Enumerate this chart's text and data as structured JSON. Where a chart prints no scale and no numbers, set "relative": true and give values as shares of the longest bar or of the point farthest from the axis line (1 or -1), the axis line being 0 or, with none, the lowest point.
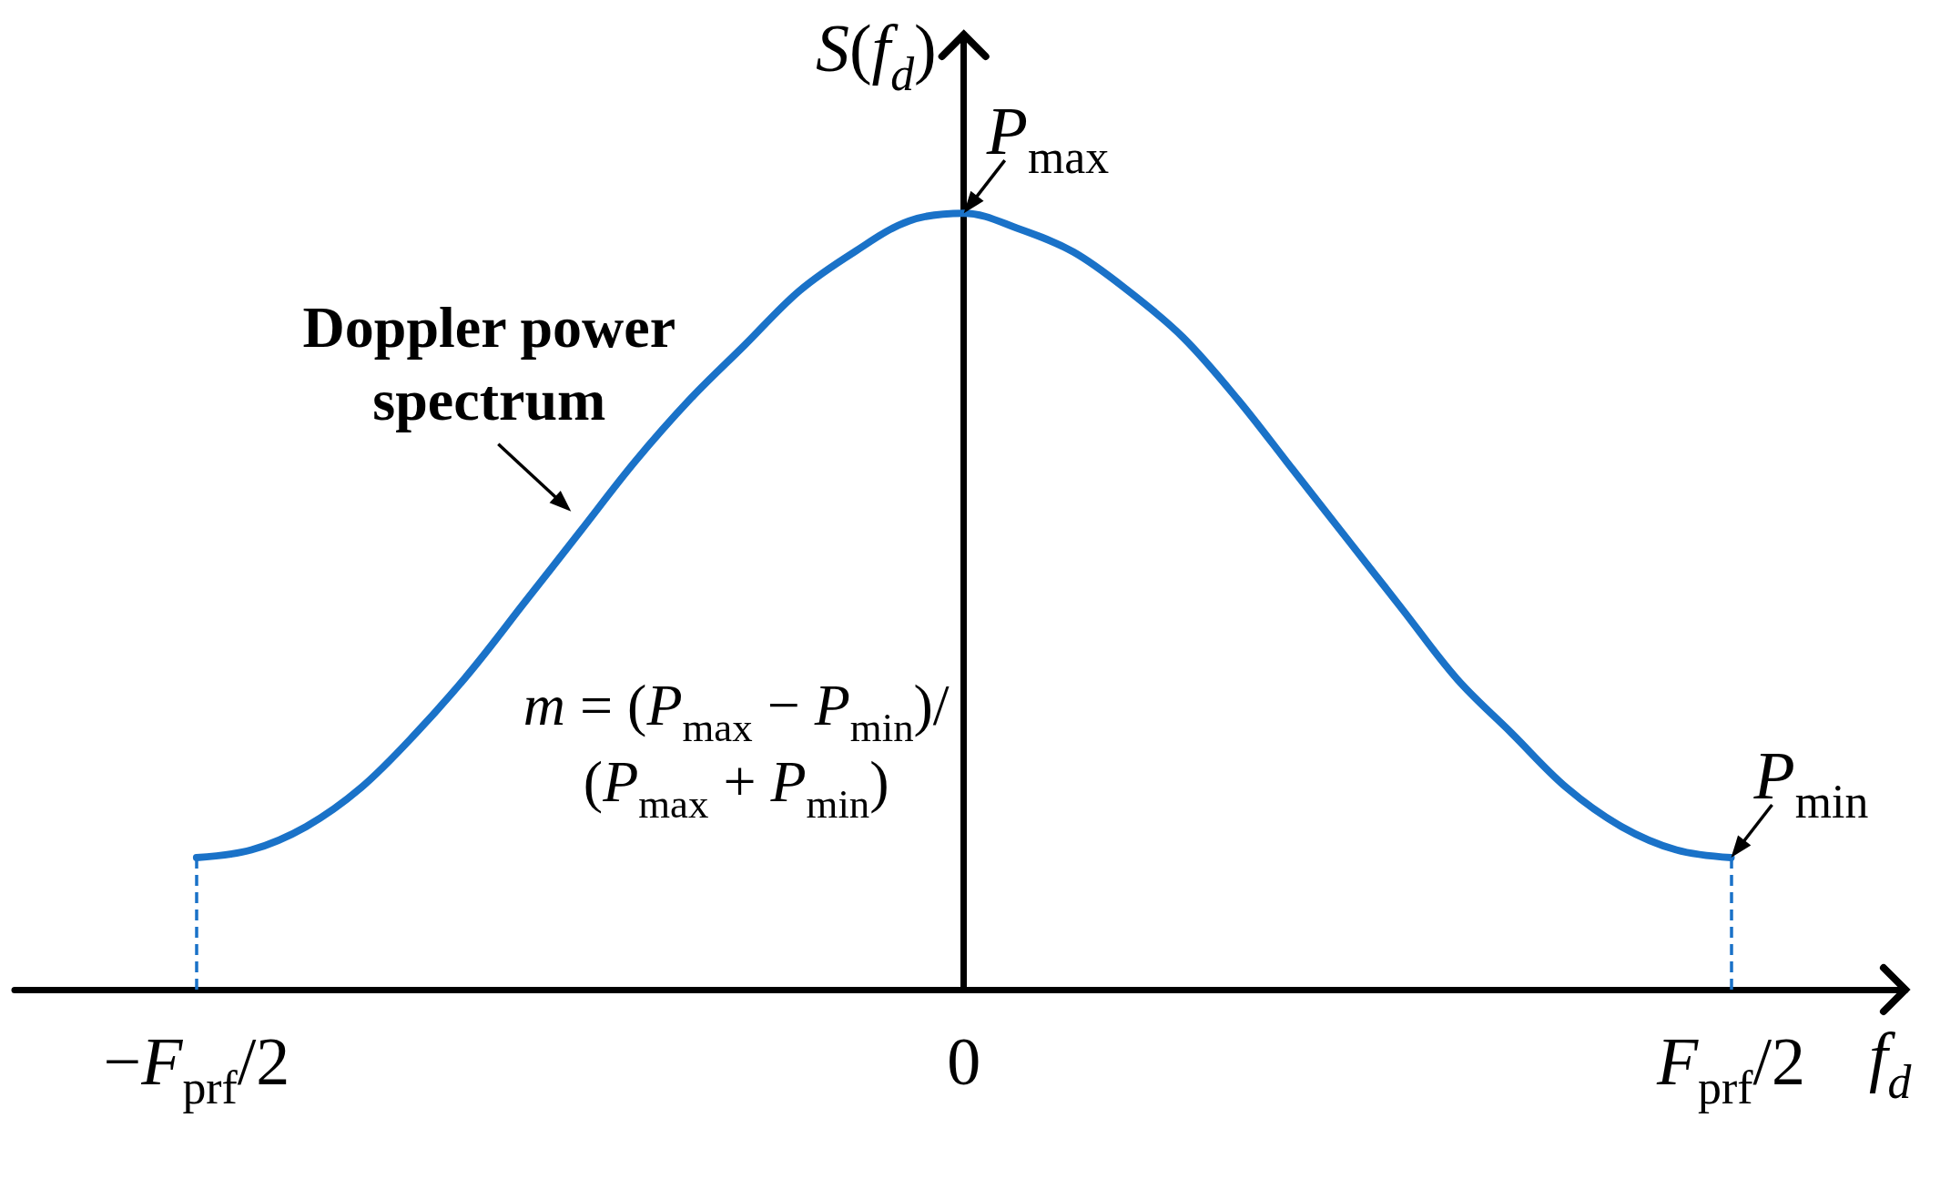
{
  "chart_data": {
    "type": "line",
    "relative": true,
    "xlabel": "f$_{d}$",
    "ylabel": "S(f$_{d}$)",
    "marker": "none",
    "categories": [
      "−F$_{prf}$/2",
      null,
      null,
      null,
      null,
      null,
      null,
      null,
      null,
      null,
      null,
      null,
      null,
      null,
      "0",
      null,
      null,
      null,
      null,
      null,
      null,
      null,
      null,
      null,
      null,
      null,
      null,
      null,
      "F$_{prf}$/2"
    ],
    "series": [
      {
        "color": "#1a72c8",
        "values": [
          0.17,
          0.18,
          0.21,
          0.26,
          0.33,
          0.41,
          0.5,
          0.59,
          0.68,
          0.76,
          0.83,
          0.9,
          0.95,
          0.99,
          1,
          0.98,
          0.95,
          0.9,
          0.84,
          0.76,
          0.67,
          0.58,
          0.49,
          0.4,
          0.33,
          0.26,
          0.21,
          0.18,
          0.17
        ]
      }
    ],
    "ref_lines": [
      {
        "axis": "x",
        "value": "−F$_{prf}$/2",
        "color": "#1a72c8",
        "line_style": "dashed"
      },
      {
        "axis": "x",
        "value": "F$_{prf}$/2",
        "color": "#1a72c8",
        "line_style": "dashed"
      }
    ],
    "annotations": [
      "Doppler power spectrum",
      {
        "text": "P$_{max}$",
        "x": "0",
        "y": 1
      },
      {
        "text": "P$_{min}$",
        "x": "F$_{prf}$/2",
        "y": 0.17
      },
      "m = (P$_{max}$ − P$_{min}$)/(P$_{max}$ + P$_{min}$)"
    ]
  }
}
